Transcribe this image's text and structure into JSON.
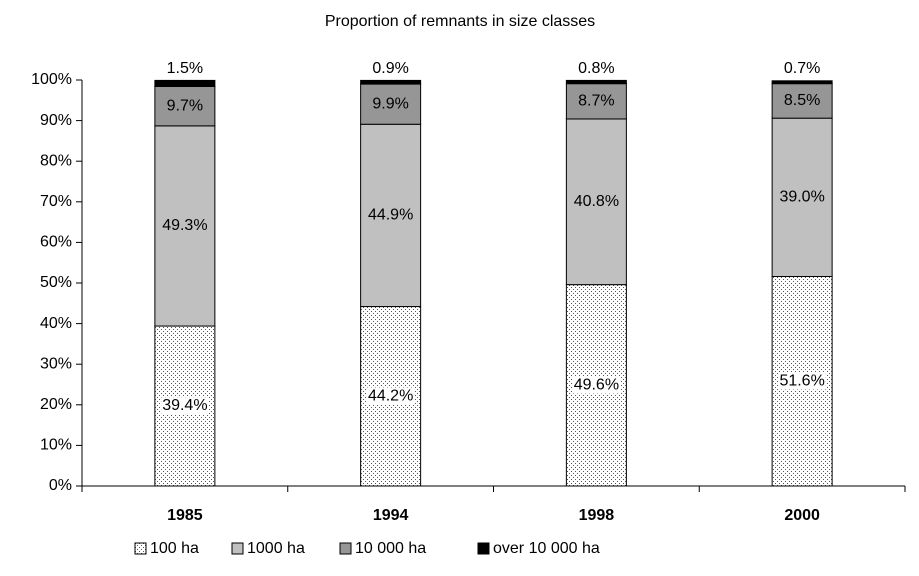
{
  "chart_data": {
    "type": "stacked_bar",
    "title": "Proportion of remnants in size classes",
    "categories": [
      "1985",
      "1994",
      "1998",
      "2000"
    ],
    "series": [
      {
        "name": "100 ha",
        "color": "#ffffff",
        "pattern": "dots",
        "values": [
          39.4,
          44.2,
          49.6,
          51.6
        ],
        "value_labels": [
          "39.4%",
          "44.2%",
          "49.6%",
          "51.6%"
        ]
      },
      {
        "name": "1000 ha",
        "color": "#c0c0c0",
        "values": [
          49.3,
          44.9,
          40.8,
          39.0
        ],
        "value_labels": [
          "49.3%",
          "44.9%",
          "40.8%",
          "39.0%"
        ]
      },
      {
        "name": "10 000 ha",
        "color": "#969696",
        "values": [
          9.7,
          9.9,
          8.7,
          8.5
        ],
        "value_labels": [
          "9.7%",
          "9.9%",
          "8.7%",
          "8.5%"
        ]
      },
      {
        "name": "over 10 000 ha",
        "color": "#000000",
        "values": [
          1.5,
          0.9,
          0.8,
          0.7
        ],
        "value_labels": [
          "1.5%",
          "0.9%",
          "0.8%",
          "0.7%"
        ]
      }
    ],
    "ylim": [
      0,
      100
    ],
    "yticks": [
      {
        "value": 0,
        "label": "0%"
      },
      {
        "value": 10,
        "label": "10%"
      },
      {
        "value": 20,
        "label": "20%"
      },
      {
        "value": 30,
        "label": "30%"
      },
      {
        "value": 40,
        "label": "40%"
      },
      {
        "value": 50,
        "label": "50%"
      },
      {
        "value": 60,
        "label": "60%"
      },
      {
        "value": 70,
        "label": "70%"
      },
      {
        "value": 80,
        "label": "80%"
      },
      {
        "value": 90,
        "label": "90%"
      },
      {
        "value": 100,
        "label": "100%"
      }
    ],
    "legend": "bottom"
  }
}
